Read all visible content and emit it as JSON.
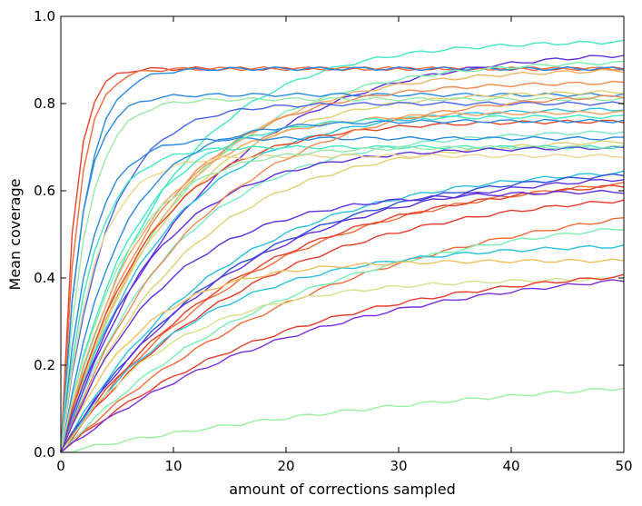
{
  "chart_data": {
    "type": "line",
    "title": "",
    "xlabel": "amount of corrections sampled",
    "ylabel": "Mean coverage",
    "xlim": [
      0,
      50
    ],
    "ylim": [
      0.0,
      1.0
    ],
    "xticks": [
      0,
      10,
      20,
      30,
      40,
      50
    ],
    "xtick_labels": [
      "0",
      "10",
      "20",
      "30",
      "40",
      "50"
    ],
    "yticks": [
      0.0,
      0.2,
      0.4,
      0.6,
      0.8,
      1.0
    ],
    "ytick_labels": [
      "0.0",
      "0.2",
      "0.4",
      "0.6",
      "0.8",
      "1.0"
    ],
    "grid": false,
    "legend": "none",
    "series_shape": "y = final * (1 - exp(-x / tau)), sampled at x = 0..50",
    "series": [
      {
        "color": "#e8402a",
        "final": 0.88,
        "tau": 1.2
      },
      {
        "color": "#f26b38",
        "final": 0.88,
        "tau": 1.5
      },
      {
        "color": "#40e8c4",
        "final": 0.945,
        "tau": 9.0
      },
      {
        "color": "#2a8ae0",
        "final": 0.88,
        "tau": 2.0
      },
      {
        "color": "#5e2ee0",
        "final": 0.925,
        "tau": 12.0
      },
      {
        "color": "#7af0b0",
        "final": 0.9,
        "tau": 10.0
      },
      {
        "color": "#f0b468",
        "final": 0.88,
        "tau": 9.5
      },
      {
        "color": "#2a8ae0",
        "final": 0.82,
        "tau": 1.8
      },
      {
        "color": "#f08a50",
        "final": 0.85,
        "tau": 8.5
      },
      {
        "color": "#e0d070",
        "final": 0.83,
        "tau": 9.0
      },
      {
        "color": "#9ae8a8",
        "final": 0.81,
        "tau": 2.2
      },
      {
        "color": "#4a64e8",
        "final": 0.8,
        "tau": 4.0
      },
      {
        "color": "#2ac0e0",
        "final": 0.79,
        "tau": 9.0
      },
      {
        "color": "#f6a05e",
        "final": 0.78,
        "tau": 7.0
      },
      {
        "color": "#e04626",
        "final": 0.76,
        "tau": 7.5
      },
      {
        "color": "#7ae8c8",
        "final": 0.74,
        "tau": 10.0
      },
      {
        "color": "#2a8ae0",
        "final": 0.72,
        "tau": 2.5
      },
      {
        "color": "#e0d070",
        "final": 0.72,
        "tau": 11.0
      },
      {
        "color": "#40e8c4",
        "final": 0.7,
        "tau": 2.8
      },
      {
        "color": "#5e2ee0",
        "final": 0.7,
        "tau": 8.0
      },
      {
        "color": "#f0d490",
        "final": 0.68,
        "tau": 3.0
      },
      {
        "color": "#2ac0e0",
        "final": 0.66,
        "tau": 14.0
      },
      {
        "color": "#2a50e0",
        "final": 0.66,
        "tau": 15.0
      },
      {
        "color": "#5e2ee0",
        "final": 0.65,
        "tau": 15.0
      },
      {
        "color": "#f26b38",
        "final": 0.65,
        "tau": 17.0
      },
      {
        "color": "#e8402a",
        "final": 0.64,
        "tau": 16.0
      },
      {
        "color": "#e83a2a",
        "final": 0.61,
        "tau": 17.0
      },
      {
        "color": "#f26b38",
        "final": 0.62,
        "tau": 25.0
      },
      {
        "color": "#7af0b0",
        "final": 0.56,
        "tau": 20.0
      },
      {
        "color": "#2ac0e0",
        "final": 0.48,
        "tau": 12.0
      },
      {
        "color": "#f0c060",
        "final": 0.44,
        "tau": 7.0
      },
      {
        "color": "#d8e08a",
        "final": 0.4,
        "tau": 10.0
      },
      {
        "color": "#e83a2a",
        "final": 0.44,
        "tau": 20.0
      },
      {
        "color": "#7a2ee0",
        "final": 0.44,
        "tau": 22.0
      },
      {
        "color": "#9af0a0",
        "final": 0.22,
        "tau": 45.0
      },
      {
        "color": "#40e8c4",
        "final": 0.77,
        "tau": 6.0
      },
      {
        "color": "#f08a50",
        "final": 0.83,
        "tau": 12.0
      },
      {
        "color": "#2a8ae0",
        "final": 0.76,
        "tau": 5.0
      },
      {
        "color": "#9ae8a8",
        "final": 0.7,
        "tau": 5.5
      },
      {
        "color": "#5e2ee0",
        "final": 0.6,
        "tau": 9.0
      }
    ]
  }
}
